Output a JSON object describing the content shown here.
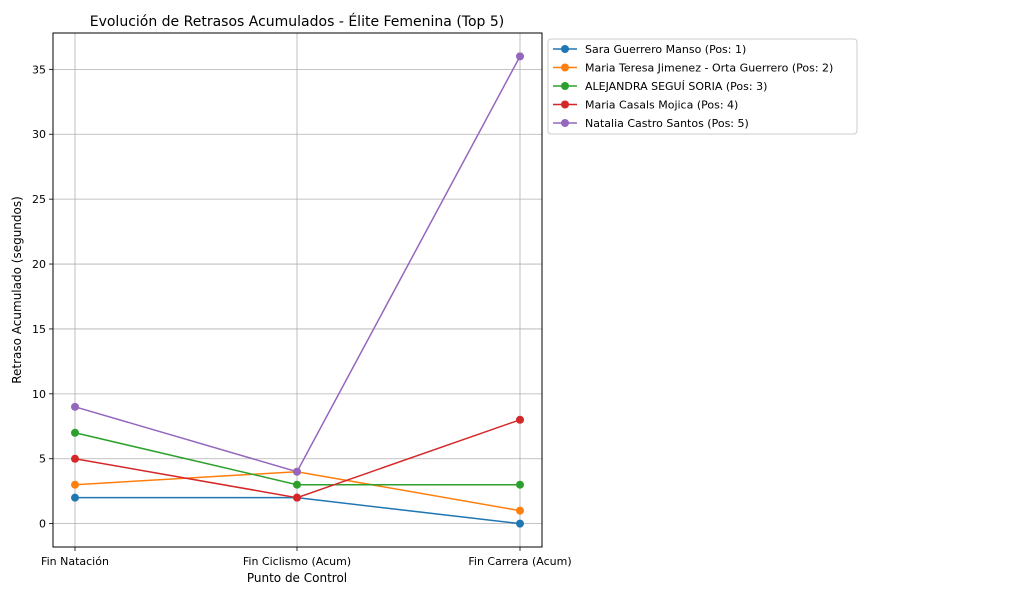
{
  "chart_data": {
    "type": "line",
    "title": "Evolución de Retrasos Acumulados - Élite Femenina (Top 5)",
    "xlabel": "Punto de Control",
    "ylabel": "Retraso Acumulado (segundos)",
    "categories": [
      "Fin Natación",
      "Fin Ciclismo (Acum)",
      "Fin Carrera (Acum)"
    ],
    "ylim": [
      -1.8,
      37.8
    ],
    "yticks": [
      0,
      5,
      10,
      15,
      20,
      25,
      30,
      35
    ],
    "grid": true,
    "legend_position": "outside-top-right",
    "series": [
      {
        "name": "Sara Guerrero Manso (Pos: 1)",
        "color": "#1f77b4",
        "values": [
          2,
          2,
          0
        ]
      },
      {
        "name": "Maria Teresa Jimenez - Orta Guerrero (Pos: 2)",
        "color": "#ff7f0e",
        "values": [
          3,
          4,
          1
        ]
      },
      {
        "name": "ALEJANDRA SEGUÍ SORIA (Pos: 3)",
        "color": "#2ca02c",
        "values": [
          7,
          3,
          3
        ]
      },
      {
        "name": "Maria Casals Mojica (Pos: 4)",
        "color": "#d62728",
        "values": [
          5,
          2,
          8
        ]
      },
      {
        "name": "Natalia Castro Santos (Pos: 5)",
        "color": "#9467bd",
        "values": [
          9,
          4,
          36
        ]
      }
    ]
  }
}
